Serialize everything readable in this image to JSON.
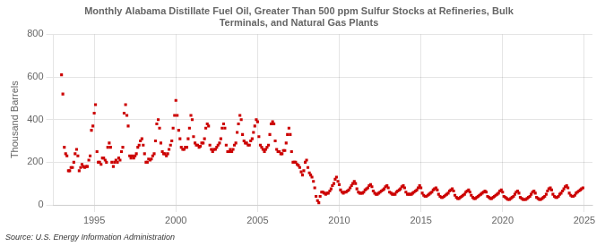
{
  "chart_data": {
    "type": "scatter",
    "title": "Monthly Alabama Distillate Fuel Oil, Greater Than 500 ppm Sulfur Stocks at Refineries, Bulk\nTerminals, and Natural Gas Plants",
    "ylabel": "Thousand Barrels",
    "source": "Source: U.S. Energy Information Administration",
    "xlim": [
      1992.5,
      2025.5
    ],
    "ylim": [
      0,
      800
    ],
    "xticks": [
      1995,
      2000,
      2005,
      2010,
      2015,
      2020,
      2025
    ],
    "yticks": [
      0,
      200,
      400,
      600,
      800
    ],
    "color": "#cc0000",
    "marker": "square",
    "grid": true,
    "x": [
      1993.0,
      1993.08,
      1993.17,
      1993.25,
      1993.33,
      1993.42,
      1993.5,
      1993.58,
      1993.67,
      1993.75,
      1993.83,
      1993.92,
      1994.0,
      1994.08,
      1994.17,
      1994.25,
      1994.33,
      1994.42,
      1994.5,
      1994.58,
      1994.67,
      1994.75,
      1994.83,
      1994.92,
      1995.0,
      1995.08,
      1995.17,
      1995.25,
      1995.33,
      1995.42,
      1995.5,
      1995.58,
      1995.67,
      1995.75,
      1995.83,
      1995.92,
      1996.0,
      1996.08,
      1996.17,
      1996.25,
      1996.33,
      1996.42,
      1996.5,
      1996.58,
      1996.67,
      1996.75,
      1996.83,
      1996.92,
      1997.0,
      1997.08,
      1997.17,
      1997.25,
      1997.33,
      1997.42,
      1997.5,
      1997.58,
      1997.67,
      1997.75,
      1997.83,
      1997.92,
      1998.0,
      1998.08,
      1998.17,
      1998.25,
      1998.33,
      1998.42,
      1998.5,
      1998.58,
      1998.67,
      1998.75,
      1998.83,
      1998.92,
      1999.0,
      1999.08,
      1999.17,
      1999.25,
      1999.33,
      1999.42,
      1999.5,
      1999.58,
      1999.67,
      1999.75,
      1999.83,
      1999.92,
      2000.0,
      2000.08,
      2000.17,
      2000.25,
      2000.33,
      2000.42,
      2000.5,
      2000.58,
      2000.67,
      2000.75,
      2000.83,
      2000.92,
      2001.0,
      2001.08,
      2001.17,
      2001.25,
      2001.33,
      2001.42,
      2001.5,
      2001.58,
      2001.67,
      2001.75,
      2001.83,
      2001.92,
      2002.0,
      2002.08,
      2002.17,
      2002.25,
      2002.33,
      2002.42,
      2002.5,
      2002.58,
      2002.67,
      2002.75,
      2002.83,
      2002.92,
      2003.0,
      2003.08,
      2003.17,
      2003.25,
      2003.33,
      2003.42,
      2003.5,
      2003.58,
      2003.67,
      2003.75,
      2003.83,
      2003.92,
      2004.0,
      2004.08,
      2004.17,
      2004.25,
      2004.33,
      2004.42,
      2004.5,
      2004.58,
      2004.67,
      2004.75,
      2004.83,
      2004.92,
      2005.0,
      2005.08,
      2005.17,
      2005.25,
      2005.33,
      2005.42,
      2005.5,
      2005.58,
      2005.67,
      2005.75,
      2005.83,
      2005.92,
      2006.0,
      2006.08,
      2006.17,
      2006.25,
      2006.33,
      2006.42,
      2006.5,
      2006.58,
      2006.67,
      2006.75,
      2006.83,
      2006.92,
      2007.0,
      2007.08,
      2007.17,
      2007.25,
      2007.33,
      2007.42,
      2007.5,
      2007.58,
      2007.67,
      2007.75,
      2007.83,
      2007.92,
      2008.0,
      2008.08,
      2008.17,
      2008.25,
      2008.33,
      2008.42,
      2008.5,
      2008.58,
      2008.67,
      2008.75,
      2008.83,
      2008.92,
      2009.0,
      2009.08,
      2009.17,
      2009.25,
      2009.33,
      2009.42,
      2009.5,
      2009.58,
      2009.67,
      2009.75,
      2009.83,
      2009.92,
      2010.0,
      2010.08,
      2010.17,
      2010.25,
      2010.33,
      2010.42,
      2010.5,
      2010.58,
      2010.67,
      2010.75,
      2010.83,
      2010.92,
      2011.0,
      2011.08,
      2011.17,
      2011.25,
      2011.33,
      2011.42,
      2011.5,
      2011.58,
      2011.67,
      2011.75,
      2011.83,
      2011.92,
      2012.0,
      2012.08,
      2012.17,
      2012.25,
      2012.33,
      2012.42,
      2012.5,
      2012.58,
      2012.67,
      2012.75,
      2012.83,
      2012.92,
      2013.0,
      2013.08,
      2013.17,
      2013.25,
      2013.33,
      2013.42,
      2013.5,
      2013.58,
      2013.67,
      2013.75,
      2013.83,
      2013.92,
      2014.0,
      2014.08,
      2014.17,
      2014.25,
      2014.33,
      2014.42,
      2014.5,
      2014.58,
      2014.67,
      2014.75,
      2014.83,
      2014.92,
      2015.0,
      2015.08,
      2015.17,
      2015.25,
      2015.33,
      2015.42,
      2015.5,
      2015.58,
      2015.67,
      2015.75,
      2015.83,
      2015.92,
      2016.0,
      2016.08,
      2016.17,
      2016.25,
      2016.33,
      2016.42,
      2016.5,
      2016.58,
      2016.67,
      2016.75,
      2016.83,
      2016.92,
      2017.0,
      2017.08,
      2017.17,
      2017.25,
      2017.33,
      2017.42,
      2017.5,
      2017.58,
      2017.67,
      2017.75,
      2017.83,
      2017.92,
      2018.0,
      2018.08,
      2018.17,
      2018.25,
      2018.33,
      2018.42,
      2018.5,
      2018.58,
      2018.67,
      2018.75,
      2018.83,
      2018.92,
      2019.0,
      2019.08,
      2019.17,
      2019.25,
      2019.33,
      2019.42,
      2019.5,
      2019.58,
      2019.67,
      2019.75,
      2019.83,
      2019.92,
      2020.0,
      2020.08,
      2020.17,
      2020.25,
      2020.33,
      2020.42,
      2020.5,
      2020.58,
      2020.67,
      2020.75,
      2020.83,
      2020.92,
      2021.0,
      2021.08,
      2021.17,
      2021.25,
      2021.33,
      2021.42,
      2021.5,
      2021.58,
      2021.67,
      2021.75,
      2021.83,
      2021.92,
      2022.0,
      2022.08,
      2022.17,
      2022.25,
      2022.33,
      2022.42,
      2022.5,
      2022.58,
      2022.67,
      2022.75,
      2022.83,
      2022.92,
      2023.0,
      2023.08,
      2023.17,
      2023.25,
      2023.33,
      2023.42,
      2023.5,
      2023.58,
      2023.67,
      2023.75,
      2023.83,
      2023.92,
      2024.0,
      2024.08,
      2024.17,
      2024.25,
      2024.33,
      2024.42,
      2024.5,
      2024.58,
      2024.67,
      2024.75,
      2024.83,
      2024.92
    ],
    "values": [
      610,
      520,
      270,
      240,
      230,
      160,
      160,
      175,
      175,
      200,
      240,
      260,
      230,
      160,
      175,
      190,
      180,
      175,
      180,
      180,
      210,
      230,
      350,
      370,
      430,
      470,
      250,
      200,
      200,
      190,
      220,
      220,
      210,
      200,
      270,
      290,
      270,
      200,
      180,
      200,
      210,
      200,
      220,
      210,
      250,
      270,
      430,
      470,
      420,
      370,
      230,
      220,
      230,
      220,
      230,
      240,
      270,
      280,
      300,
      310,
      280,
      240,
      200,
      200,
      215,
      210,
      215,
      230,
      240,
      300,
      380,
      400,
      360,
      290,
      250,
      240,
      240,
      230,
      240,
      260,
      280,
      300,
      360,
      420,
      490,
      420,
      350,
      310,
      270,
      260,
      260,
      270,
      270,
      310,
      360,
      420,
      400,
      320,
      290,
      280,
      280,
      270,
      275,
      290,
      290,
      310,
      360,
      380,
      370,
      280,
      260,
      250,
      260,
      260,
      270,
      280,
      290,
      310,
      360,
      380,
      360,
      280,
      250,
      250,
      260,
      250,
      260,
      280,
      290,
      340,
      380,
      420,
      400,
      330,
      300,
      290,
      290,
      280,
      280,
      300,
      310,
      340,
      370,
      400,
      390,
      320,
      280,
      270,
      260,
      250,
      260,
      270,
      280,
      330,
      380,
      390,
      380,
      300,
      260,
      250,
      250,
      240,
      240,
      255,
      255,
      290,
      330,
      360,
      330,
      250,
      200,
      200,
      200,
      190,
      185,
      175,
      155,
      140,
      160,
      200,
      210,
      175,
      150,
      140,
      130,
      110,
      80,
      40,
      20,
      10,
      40,
      60,
      60,
      55,
      50,
      55,
      55,
      65,
      75,
      90,
      100,
      120,
      130,
      110,
      95,
      70,
      60,
      55,
      60,
      60,
      65,
      70,
      80,
      90,
      100,
      110,
      100,
      75,
      60,
      55,
      55,
      55,
      60,
      70,
      75,
      80,
      90,
      95,
      85,
      65,
      55,
      50,
      50,
      55,
      60,
      65,
      70,
      75,
      85,
      90,
      80,
      60,
      55,
      50,
      50,
      50,
      60,
      65,
      70,
      75,
      85,
      90,
      80,
      60,
      50,
      50,
      50,
      50,
      55,
      60,
      65,
      70,
      80,
      90,
      80,
      55,
      45,
      40,
      40,
      45,
      50,
      55,
      60,
      70,
      75,
      80,
      70,
      50,
      40,
      35,
      35,
      40,
      45,
      50,
      55,
      65,
      70,
      75,
      65,
      45,
      35,
      30,
      30,
      35,
      40,
      45,
      50,
      60,
      65,
      70,
      60,
      45,
      35,
      30,
      30,
      35,
      40,
      45,
      50,
      55,
      60,
      65,
      60,
      40,
      35,
      30,
      30,
      35,
      40,
      45,
      50,
      55,
      65,
      70,
      60,
      40,
      35,
      30,
      25,
      25,
      30,
      35,
      40,
      50,
      60,
      65,
      55,
      35,
      30,
      25,
      25,
      25,
      30,
      35,
      40,
      50,
      60,
      65,
      55,
      35,
      30,
      25,
      25,
      30,
      35,
      40,
      50,
      65,
      75,
      80,
      70,
      50,
      40,
      35,
      35,
      40,
      50,
      55,
      65,
      75,
      85,
      90,
      80,
      55,
      45,
      40,
      40,
      45,
      55,
      60,
      65,
      70,
      75,
      80
    ]
  }
}
